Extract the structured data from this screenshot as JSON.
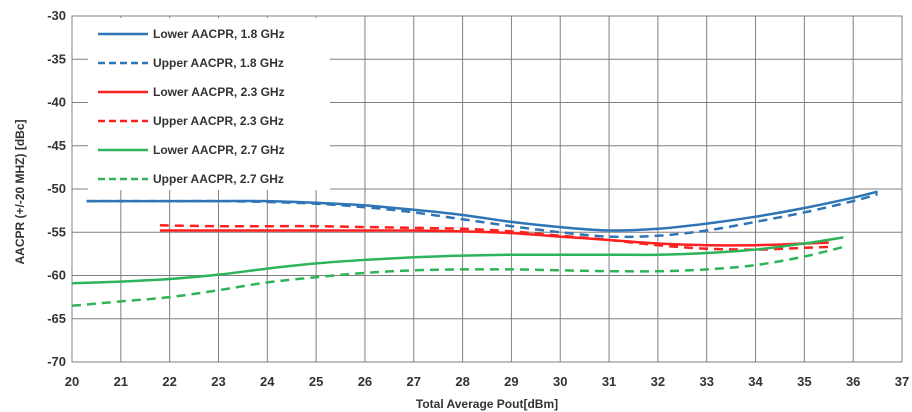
{
  "chart_data": {
    "type": "line",
    "title": "",
    "xlabel": "Total Average Pout[dBm]",
    "ylabel": "AACPR (+/-20 MHZ) [dBc]",
    "xlim": [
      20,
      37
    ],
    "ylim": [
      -70,
      -30
    ],
    "x_ticks": [
      20,
      21,
      22,
      23,
      24,
      25,
      26,
      27,
      28,
      29,
      30,
      31,
      32,
      33,
      34,
      35,
      36,
      37
    ],
    "y_ticks": [
      -30,
      -35,
      -40,
      -45,
      -50,
      -55,
      -60,
      -65,
      -70
    ],
    "grid": true,
    "legend_position": "top-left",
    "series": [
      {
        "name": "Lower AACPR, 1.8 GHz",
        "color": "#2e75b6",
        "dash": "solid",
        "x": [
          20.3,
          22,
          23,
          24,
          25,
          26,
          27,
          28,
          29,
          30,
          31,
          32,
          33,
          34,
          35,
          36,
          36.5
        ],
        "y": [
          -51.4,
          -51.4,
          -51.4,
          -51.4,
          -51.6,
          -51.9,
          -52.4,
          -53.0,
          -53.8,
          -54.4,
          -54.8,
          -54.6,
          -54.0,
          -53.2,
          -52.2,
          -51.0,
          -50.3
        ]
      },
      {
        "name": "Upper AACPR, 1.8 GHz",
        "color": "#2e75b6",
        "dash": "dashed",
        "x": [
          20.3,
          22,
          23,
          24,
          25,
          26,
          27,
          28,
          29,
          30,
          31,
          32,
          33,
          34,
          35,
          36,
          36.5
        ],
        "y": [
          -51.4,
          -51.4,
          -51.4,
          -51.5,
          -51.7,
          -52.1,
          -52.7,
          -53.5,
          -54.3,
          -55.0,
          -55.5,
          -55.4,
          -54.8,
          -53.8,
          -52.7,
          -51.4,
          -50.6
        ]
      },
      {
        "name": "Lower AACPR, 2.3 GHz",
        "color": "#ff2020",
        "dash": "solid",
        "x": [
          21.8,
          23,
          24,
          25,
          26,
          27,
          28,
          29,
          30,
          31,
          32,
          33,
          34,
          35,
          35.5
        ],
        "y": [
          -54.8,
          -54.8,
          -54.8,
          -54.8,
          -54.8,
          -54.8,
          -54.9,
          -55.1,
          -55.5,
          -55.9,
          -56.3,
          -56.5,
          -56.5,
          -56.3,
          -56.2
        ]
      },
      {
        "name": "Upper AACPR, 2.3 GHz",
        "color": "#ff2020",
        "dash": "dashed",
        "x": [
          21.8,
          23,
          24,
          25,
          26,
          27,
          28,
          29,
          30,
          31,
          32,
          33,
          34,
          35,
          35.5
        ],
        "y": [
          -54.2,
          -54.3,
          -54.3,
          -54.3,
          -54.4,
          -54.5,
          -54.6,
          -54.9,
          -55.4,
          -55.9,
          -56.5,
          -56.9,
          -57.0,
          -56.8,
          -56.7
        ]
      },
      {
        "name": "Lower AACPR, 2.7 GHz",
        "color": "#2db35a",
        "dash": "solid",
        "x": [
          20,
          21,
          22,
          23,
          24,
          25,
          26,
          27,
          28,
          29,
          30,
          31,
          32,
          33,
          34,
          35,
          35.8
        ],
        "y": [
          -60.9,
          -60.7,
          -60.4,
          -59.9,
          -59.2,
          -58.6,
          -58.2,
          -57.9,
          -57.7,
          -57.6,
          -57.6,
          -57.6,
          -57.6,
          -57.4,
          -57.0,
          -56.3,
          -55.6
        ]
      },
      {
        "name": "Upper AACPR, 2.7 GHz",
        "color": "#2db35a",
        "dash": "dashed",
        "x": [
          20,
          21,
          22,
          23,
          24,
          25,
          26,
          27,
          28,
          29,
          30,
          31,
          32,
          33,
          34,
          35,
          35.8
        ],
        "y": [
          -63.5,
          -63.0,
          -62.5,
          -61.7,
          -60.8,
          -60.2,
          -59.7,
          -59.4,
          -59.3,
          -59.3,
          -59.4,
          -59.5,
          -59.5,
          -59.3,
          -58.8,
          -57.8,
          -56.7
        ]
      }
    ]
  }
}
